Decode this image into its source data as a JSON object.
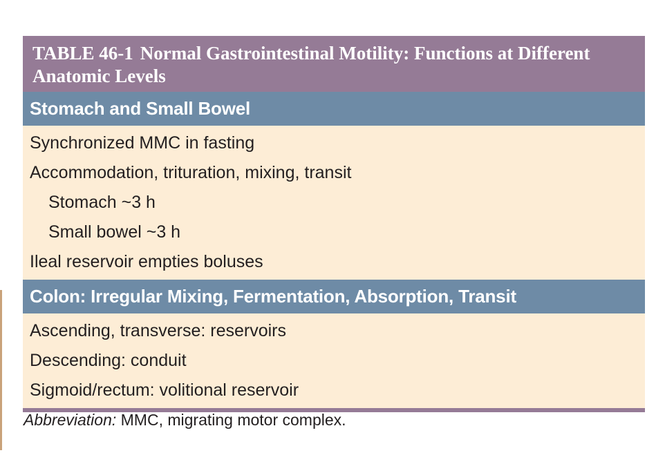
{
  "table": {
    "number": "TABLE 46-1",
    "title": "Normal Gastrointestinal Motility: Functions at Different Anatomic Levels",
    "sections": [
      {
        "heading": "Stomach and Small Bowel",
        "rows": [
          "Synchronized MMC in fasting",
          "Accommodation, trituration, mixing, transit",
          "Stomach ~3 h",
          "Small bowel ~3 h",
          "Ileal reservoir empties boluses"
        ]
      },
      {
        "heading": "Colon: Irregular Mixing, Fermentation, Absorption, Transit",
        "rows": [
          "Ascending, transverse: reservoirs",
          "Descending: conduit",
          "Sigmoid/rectum: volitional reservoir"
        ]
      }
    ]
  },
  "footnote": {
    "label": "Abbreviation:",
    "text": " MMC, migrating motor complex."
  },
  "colors": {
    "title_bar": "#957b96",
    "section_header": "#6e8ba6",
    "body_background": "#fdedd6",
    "text": "#231f20"
  }
}
